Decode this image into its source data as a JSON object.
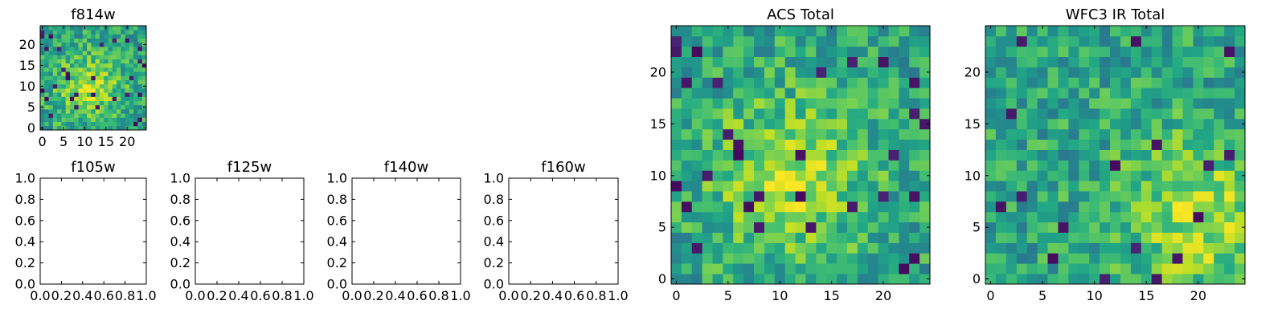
{
  "figure": {
    "description_colormap": "viridis",
    "colors": {
      "viridis_low": "#440154",
      "viridis_mid": "#21918c",
      "viridis_high": "#fde725",
      "frame": "#000000",
      "background": "#ffffff"
    }
  },
  "chart_data": [
    {
      "id": "f814w",
      "type": "heatmap",
      "title": "f814w",
      "xlabel": "",
      "ylabel": "",
      "grid_size": 25,
      "xlim": [
        -0.5,
        24.5
      ],
      "ylim": [
        -0.5,
        24.5
      ],
      "xticks": [
        "0",
        "5",
        "10",
        "15",
        "20"
      ],
      "yticks": [
        "0",
        "5",
        "10",
        "15",
        "20"
      ],
      "colormap": "viridis",
      "value_range": [
        0,
        1
      ],
      "seed": 814,
      "bright_center": [
        11,
        10
      ],
      "grid": false
    },
    {
      "id": "f105w",
      "type": "empty",
      "title": "f105w",
      "xlim": [
        0,
        1
      ],
      "ylim": [
        0,
        1
      ],
      "xticks": [
        "0.0",
        "0.2",
        "0.4",
        "0.6",
        "0.8",
        "1.0"
      ],
      "yticks": [
        "0.0",
        "0.2",
        "0.4",
        "0.6",
        "0.8",
        "1.0"
      ]
    },
    {
      "id": "f125w",
      "type": "empty",
      "title": "f125w",
      "xlim": [
        0,
        1
      ],
      "ylim": [
        0,
        1
      ],
      "xticks": [
        "0.0",
        "0.2",
        "0.4",
        "0.6",
        "0.8",
        "1.0"
      ],
      "yticks": [
        "0.0",
        "0.2",
        "0.4",
        "0.6",
        "0.8",
        "1.0"
      ]
    },
    {
      "id": "f140w",
      "type": "empty",
      "title": "f140w",
      "xlim": [
        0,
        1
      ],
      "ylim": [
        0,
        1
      ],
      "xticks": [
        "0.0",
        "0.2",
        "0.4",
        "0.6",
        "0.8",
        "1.0"
      ],
      "yticks": [
        "0.0",
        "0.2",
        "0.4",
        "0.6",
        "0.8",
        "1.0"
      ]
    },
    {
      "id": "f160w",
      "type": "empty",
      "title": "f160w",
      "xlim": [
        0,
        1
      ],
      "ylim": [
        0,
        1
      ],
      "xticks": [
        "0.0",
        "0.2",
        "0.4",
        "0.6",
        "0.8",
        "1.0"
      ],
      "yticks": [
        "0.0",
        "0.2",
        "0.4",
        "0.6",
        "0.8",
        "1.0"
      ]
    },
    {
      "id": "acs-total",
      "type": "heatmap",
      "title": "ACS Total",
      "xlabel": "",
      "ylabel": "",
      "grid_size": 25,
      "xlim": [
        -0.5,
        24.5
      ],
      "ylim": [
        -0.5,
        24.5
      ],
      "xticks": [
        "0",
        "5",
        "10",
        "15",
        "20"
      ],
      "yticks": [
        "0",
        "5",
        "10",
        "15",
        "20"
      ],
      "colormap": "viridis",
      "value_range": [
        0,
        1
      ],
      "seed": 814,
      "bright_center": [
        11,
        10
      ],
      "grid": false
    },
    {
      "id": "wfc3-ir-total",
      "type": "heatmap",
      "title": "WFC3 IR Total",
      "xlabel": "",
      "ylabel": "",
      "grid_size": 25,
      "xlim": [
        -0.5,
        24.5
      ],
      "ylim": [
        -0.5,
        24.5
      ],
      "xticks": [
        "0",
        "5",
        "10",
        "15",
        "20"
      ],
      "yticks": [
        "0",
        "5",
        "10",
        "15",
        "20"
      ],
      "colormap": "viridis",
      "value_range": [
        0,
        1
      ],
      "seed": 3,
      "bright_center": [
        20,
        6
      ],
      "grid": false
    }
  ]
}
